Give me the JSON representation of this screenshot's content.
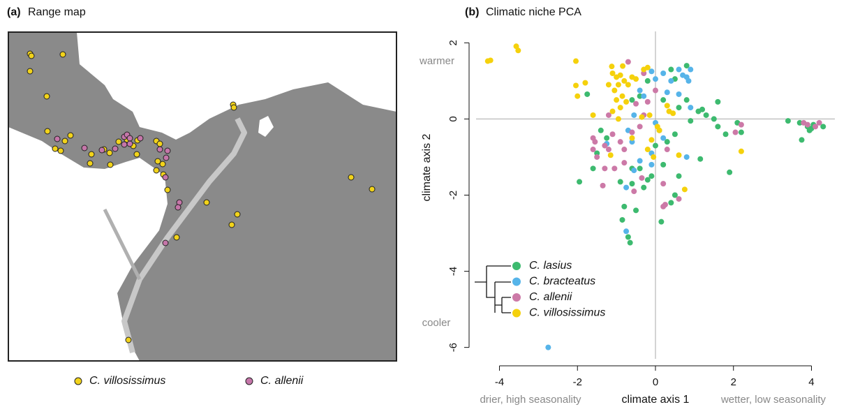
{
  "chart_data": [
    {
      "type": "map",
      "panel_label": "(a)",
      "title": "Range map",
      "series": [
        {
          "name": "C. villosissimus",
          "color": "#f2d31b"
        },
        {
          "name": "C. allenii",
          "color": "#c576a9"
        }
      ]
    },
    {
      "type": "scatter",
      "panel_label": "(b)",
      "title": "Climatic niche PCA",
      "xlabel": "climate axis 1",
      "ylabel": "climate axis 2",
      "annotations": {
        "top": "warmer",
        "bottom": "cooler",
        "left": "drier, high seasonality",
        "right": "wetter, low seasonality"
      },
      "xlim": [
        -4.6,
        4.6
      ],
      "ylim": [
        -6.3,
        2.3
      ],
      "xticks": [
        -4,
        -2,
        0,
        2,
        4
      ],
      "yticks": [
        -6,
        -4,
        -2,
        0,
        2
      ],
      "zero_lines": true,
      "series": [
        {
          "name": "C. lasius",
          "color": "#3dba6f",
          "x": [
            -1.75,
            -1.95,
            -1.4,
            -1.5,
            -1.6,
            -1.25,
            -0.6,
            -0.4,
            -0.2,
            0.2,
            0.4,
            0.5,
            0.8,
            0.6,
            0.8,
            0.9,
            1.1,
            1.2,
            1.3,
            1.5,
            1.6,
            1.8,
            2.1,
            2.2,
            1.9,
            1.6,
            3.4,
            3.7,
            3.9,
            4.0,
            3.95,
            4.05,
            4.3,
            3.75,
            1.15,
            0.6,
            0.5,
            0.4,
            0.15,
            -0.2,
            -0.4,
            -0.6,
            -0.9,
            -0.8,
            -0.85,
            -0.7,
            -0.65,
            -0.5,
            -0.3,
            0.0,
            0.3,
            0.5,
            0.2,
            -0.1,
            -0.6
          ],
          "y": [
            0.65,
            -1.65,
            -0.3,
            -0.9,
            -1.3,
            -0.5,
            0.5,
            0.6,
            1.0,
            0.5,
            1.3,
            1.05,
            1.4,
            0.3,
            0.5,
            -0.05,
            0.2,
            0.25,
            0.1,
            0.0,
            -0.2,
            -0.4,
            -0.1,
            -0.35,
            -1.4,
            0.45,
            -0.05,
            -0.1,
            -0.2,
            -0.25,
            -0.3,
            -0.15,
            -0.2,
            -0.55,
            -1.05,
            -1.5,
            -2.0,
            -2.2,
            -2.7,
            -1.6,
            -1.3,
            -1.3,
            -1.65,
            -2.3,
            -2.65,
            -3.1,
            -3.25,
            -2.4,
            -1.8,
            -0.7,
            -0.6,
            -0.4,
            -1.2,
            -1.5,
            -1.7
          ]
        },
        {
          "name": "C. bracteatus",
          "color": "#56b4e9",
          "x": [
            -0.1,
            0.0,
            0.2,
            0.4,
            0.6,
            0.7,
            0.8,
            0.9,
            0.85,
            0.3,
            0.6,
            -0.4,
            -0.3,
            -0.55,
            -0.7,
            -0.6,
            -0.4,
            -0.55,
            -0.1,
            0.0,
            0.2,
            0.8,
            0.9,
            -1.25,
            -0.75,
            -0.75,
            -2.75,
            -0.1,
            0.1
          ],
          "y": [
            1.25,
            1.05,
            1.2,
            1.0,
            1.3,
            1.15,
            1.1,
            1.3,
            1.0,
            0.7,
            0.65,
            0.75,
            0.6,
            0.1,
            -0.3,
            -0.6,
            -1.1,
            -1.35,
            -1.2,
            -0.1,
            -0.5,
            -1.0,
            0.3,
            -0.65,
            -1.8,
            -2.95,
            -6.0,
            -0.9,
            -0.3
          ]
        },
        {
          "name": "C. allenii",
          "color": "#cc79a7",
          "x": [
            -0.7,
            -0.3,
            0.0,
            -0.5,
            -0.2,
            -1.2,
            -1.6,
            -1.55,
            -1.6,
            -1.5,
            -1.3,
            -1.2,
            -1.1,
            -0.9,
            -0.8,
            -0.6,
            -0.4,
            -0.3,
            -1.3,
            -1.05,
            -0.8,
            -1.35,
            -0.55,
            -0.35,
            0.25,
            0.2,
            0.6,
            0.2,
            3.8,
            3.9,
            4.1,
            4.2,
            2.2,
            2.05,
            0.3
          ],
          "y": [
            1.5,
            1.2,
            0.75,
            0.4,
            0.45,
            0.1,
            -0.5,
            -0.6,
            -0.8,
            -1.0,
            -0.7,
            -0.8,
            -0.4,
            -0.6,
            -0.8,
            -0.35,
            -0.2,
            0.1,
            -1.3,
            -1.3,
            -1.15,
            -1.75,
            -1.9,
            -1.55,
            -2.25,
            -2.3,
            -2.1,
            -1.7,
            -0.1,
            -0.15,
            -0.2,
            -0.1,
            -0.15,
            -0.35,
            -0.8
          ]
        },
        {
          "name": "C. villosissimus",
          "color": "#f5d10c",
          "x": [
            -4.3,
            -4.23,
            -3.57,
            -3.52,
            -2.04,
            -2.04,
            -1.12,
            -0.84,
            -1.1,
            -1.0,
            -0.9,
            -0.8,
            -0.95,
            -1.05,
            -0.7,
            -0.85,
            -1.0,
            -0.75,
            -1.2,
            -0.6,
            -0.5,
            -0.9,
            -1.1,
            -0.3,
            -0.2,
            0.3,
            0.35,
            0.45,
            -0.35,
            -0.15,
            0.05,
            0.1,
            -0.1,
            -0.05,
            -0.2,
            -1.15,
            -1.6,
            -1.8,
            -2.0,
            0.6,
            0.75,
            2.2,
            -0.95,
            -0.6
          ],
          "y": [
            1.52,
            1.54,
            1.91,
            1.8,
            1.52,
            0.88,
            1.38,
            1.39,
            1.2,
            1.1,
            1.15,
            1.0,
            0.9,
            0.75,
            0.9,
            0.6,
            0.5,
            0.45,
            0.9,
            1.1,
            1.05,
            0.3,
            0.2,
            1.3,
            1.35,
            0.35,
            0.2,
            0.15,
            0.05,
            0.1,
            -0.2,
            -0.3,
            -0.55,
            -1.0,
            -0.8,
            -0.95,
            0.1,
            0.95,
            0.6,
            -0.95,
            -1.85,
            -0.85,
            0.0,
            -0.5
          ]
        }
      ]
    }
  ]
}
